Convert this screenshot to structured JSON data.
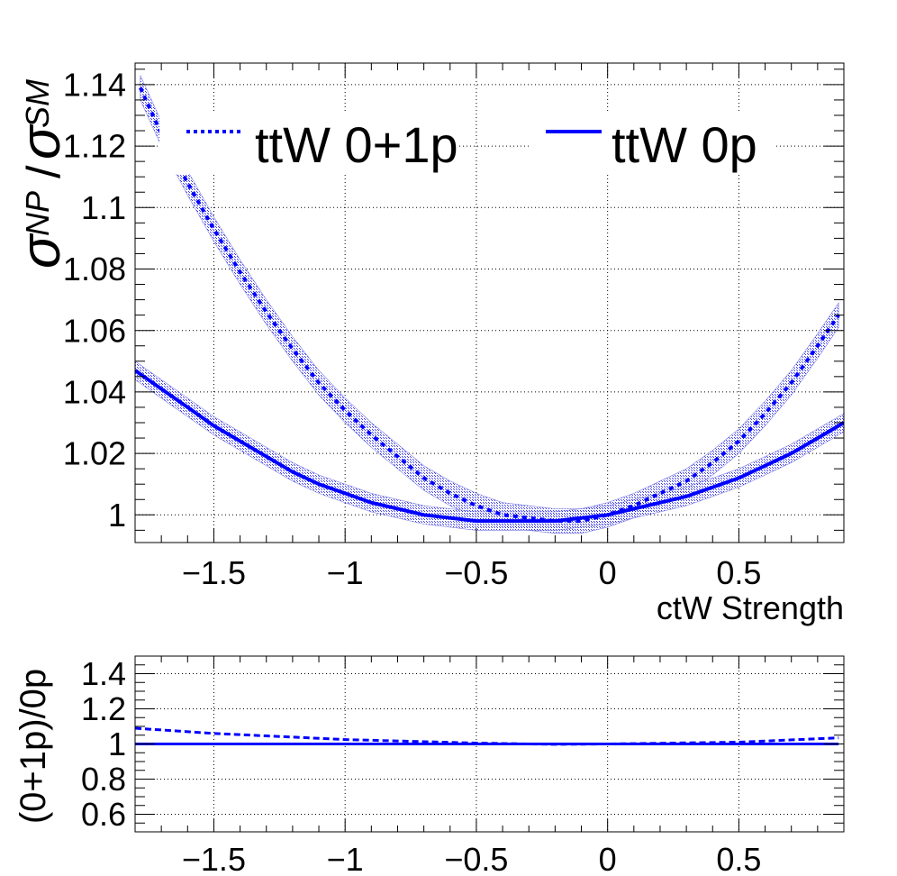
{
  "chart_data": [
    {
      "type": "line",
      "xlabel": "ctW Strength",
      "ylabel": {
        "sigma": "σ",
        "np": "NP",
        "slash": "/",
        "sm": "SM"
      },
      "xlim": [
        -1.8,
        0.9
      ],
      "ylim": [
        0.991,
        1.147
      ],
      "xticks": [
        -1.5,
        -1,
        -0.5,
        0,
        0.5
      ],
      "xtick_labels": [
        "−1.5",
        "−1",
        "−0.5",
        "0",
        "0.5"
      ],
      "yticks": [
        1,
        1.02,
        1.04,
        1.06,
        1.08,
        1.1,
        1.12,
        1.14
      ],
      "ytick_labels": [
        "1",
        "1.02",
        "1.04",
        "1.06",
        "1.08",
        "1.1",
        "1.12",
        "1.14"
      ],
      "grid": true,
      "legend_position": "top",
      "series": [
        {
          "name": "ttW 0+1p",
          "style": "dotted",
          "color": "#0000ff",
          "band": 0.004,
          "x": [
            -1.78,
            -1.7,
            -1.6,
            -1.5,
            -1.4,
            -1.3,
            -1.2,
            -1.1,
            -1.0,
            -0.9,
            -0.8,
            -0.7,
            -0.6,
            -0.5,
            -0.4,
            -0.3,
            -0.2,
            -0.1,
            0.0,
            0.1,
            0.2,
            0.3,
            0.4,
            0.5,
            0.6,
            0.7,
            0.8,
            0.88
          ],
          "y": [
            1.139,
            1.124,
            1.108,
            1.093,
            1.079,
            1.066,
            1.054,
            1.043,
            1.034,
            1.026,
            1.019,
            1.012,
            1.007,
            1.003,
            1.0,
            0.999,
            0.998,
            0.998,
            1.0,
            1.003,
            1.007,
            1.011,
            1.017,
            1.024,
            1.033,
            1.043,
            1.055,
            1.065
          ]
        },
        {
          "name": "ttW 0p",
          "style": "solid",
          "color": "#0000ff",
          "band": 0.003,
          "x": [
            -1.8,
            -1.7,
            -1.6,
            -1.5,
            -1.4,
            -1.3,
            -1.2,
            -1.1,
            -1.0,
            -0.9,
            -0.8,
            -0.7,
            -0.6,
            -0.5,
            -0.4,
            -0.3,
            -0.2,
            -0.1,
            0.0,
            0.1,
            0.2,
            0.3,
            0.4,
            0.5,
            0.6,
            0.7,
            0.8,
            0.9
          ],
          "y": [
            1.047,
            1.041,
            1.035,
            1.029,
            1.024,
            1.019,
            1.014,
            1.01,
            1.007,
            1.004,
            1.002,
            1.0,
            0.999,
            0.998,
            0.998,
            0.998,
            0.998,
            0.999,
            1.0,
            1.002,
            1.004,
            1.006,
            1.009,
            1.012,
            1.016,
            1.02,
            1.025,
            1.03
          ]
        }
      ]
    },
    {
      "type": "line",
      "ylabel": "(0+1p)/0p",
      "xlim": [
        -1.8,
        0.9
      ],
      "ylim": [
        0.5,
        1.5
      ],
      "xticks": [
        -1.5,
        -1,
        -0.5,
        0,
        0.5
      ],
      "xtick_labels": [
        "−1.5",
        "−1",
        "−0.5",
        "0",
        "0.5"
      ],
      "yticks": [
        0.6,
        0.8,
        1,
        1.2,
        1.4
      ],
      "ytick_labels": [
        "0.6",
        "0.8",
        "1",
        "1.2",
        "1.4"
      ],
      "grid": true,
      "series": [
        {
          "style": "dashed",
          "color": "#0000ff",
          "x": [
            -1.8,
            -1.5,
            -1.0,
            -0.5,
            -0.3,
            -0.2,
            0.0,
            0.5,
            0.88
          ],
          "y": [
            1.09,
            1.06,
            1.025,
            1.005,
            1.0,
            0.998,
            1.0,
            1.01,
            1.035
          ]
        },
        {
          "style": "solid",
          "color": "#0000ff",
          "x": [
            -1.8,
            0.88
          ],
          "y": [
            1.0,
            1.0
          ]
        }
      ]
    }
  ]
}
